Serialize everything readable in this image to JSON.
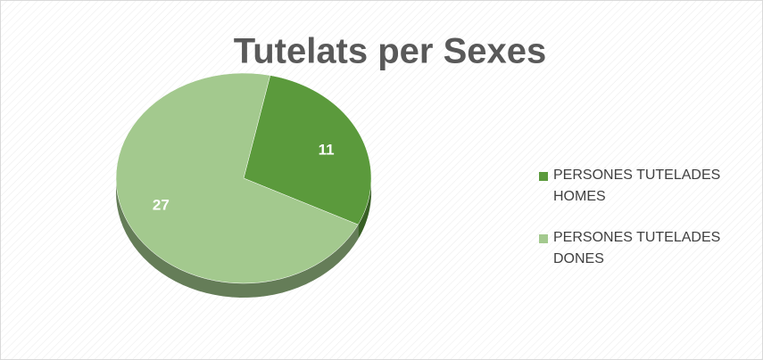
{
  "chart_data": {
    "type": "pie",
    "title": "Tutelats per Sexes",
    "categories": [
      "PERSONES TUTELADES HOMES",
      "PERSONES TUTELADES DONES"
    ],
    "values": [
      11,
      27
    ],
    "colors": [
      "#5b9a3c",
      "#a3c98e"
    ],
    "legend": "right"
  }
}
